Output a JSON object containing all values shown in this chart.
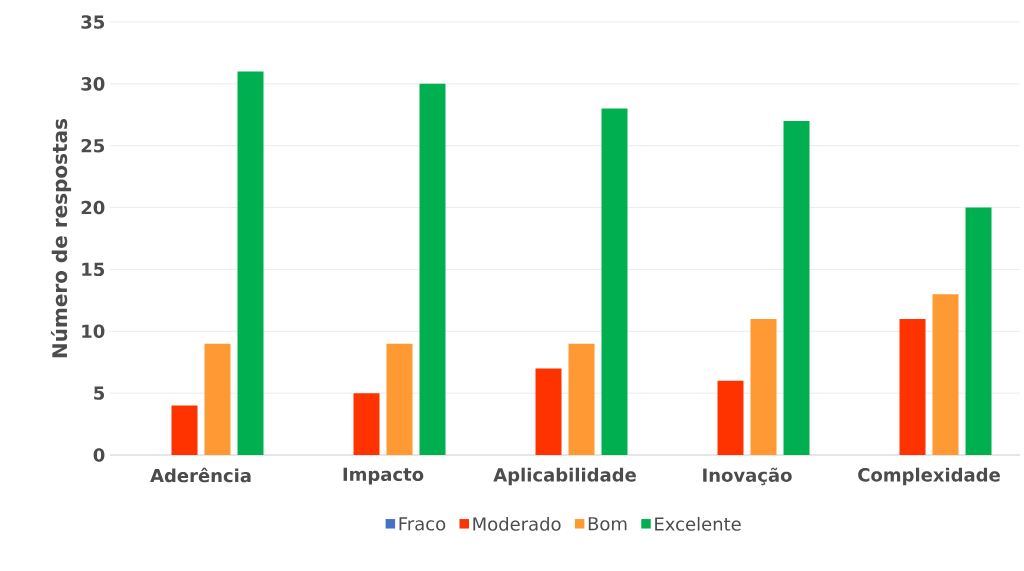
{
  "chart_data": {
    "type": "bar",
    "ylabel": "Número de respostas",
    "categories": [
      "Aderência",
      "Impacto",
      "Aplicabilidade",
      "Inovação",
      "Complexidade"
    ],
    "series": [
      {
        "name": "Fraco",
        "color": "#4472c4",
        "values": [
          0,
          0,
          0,
          0,
          0
        ]
      },
      {
        "name": "Moderado",
        "color": "#ff3300",
        "values": [
          4,
          5,
          7,
          6,
          11
        ]
      },
      {
        "name": "Bom",
        "color": "#ff9933",
        "values": [
          9,
          9,
          9,
          11,
          13
        ]
      },
      {
        "name": "Excelente",
        "color": "#00b050",
        "values": [
          31,
          30,
          28,
          27,
          20
        ]
      }
    ],
    "ylim": [
      0,
      35
    ],
    "yticks": [
      0,
      5,
      10,
      15,
      20,
      25,
      30,
      35
    ],
    "grid": "y",
    "legend": "bottom"
  }
}
